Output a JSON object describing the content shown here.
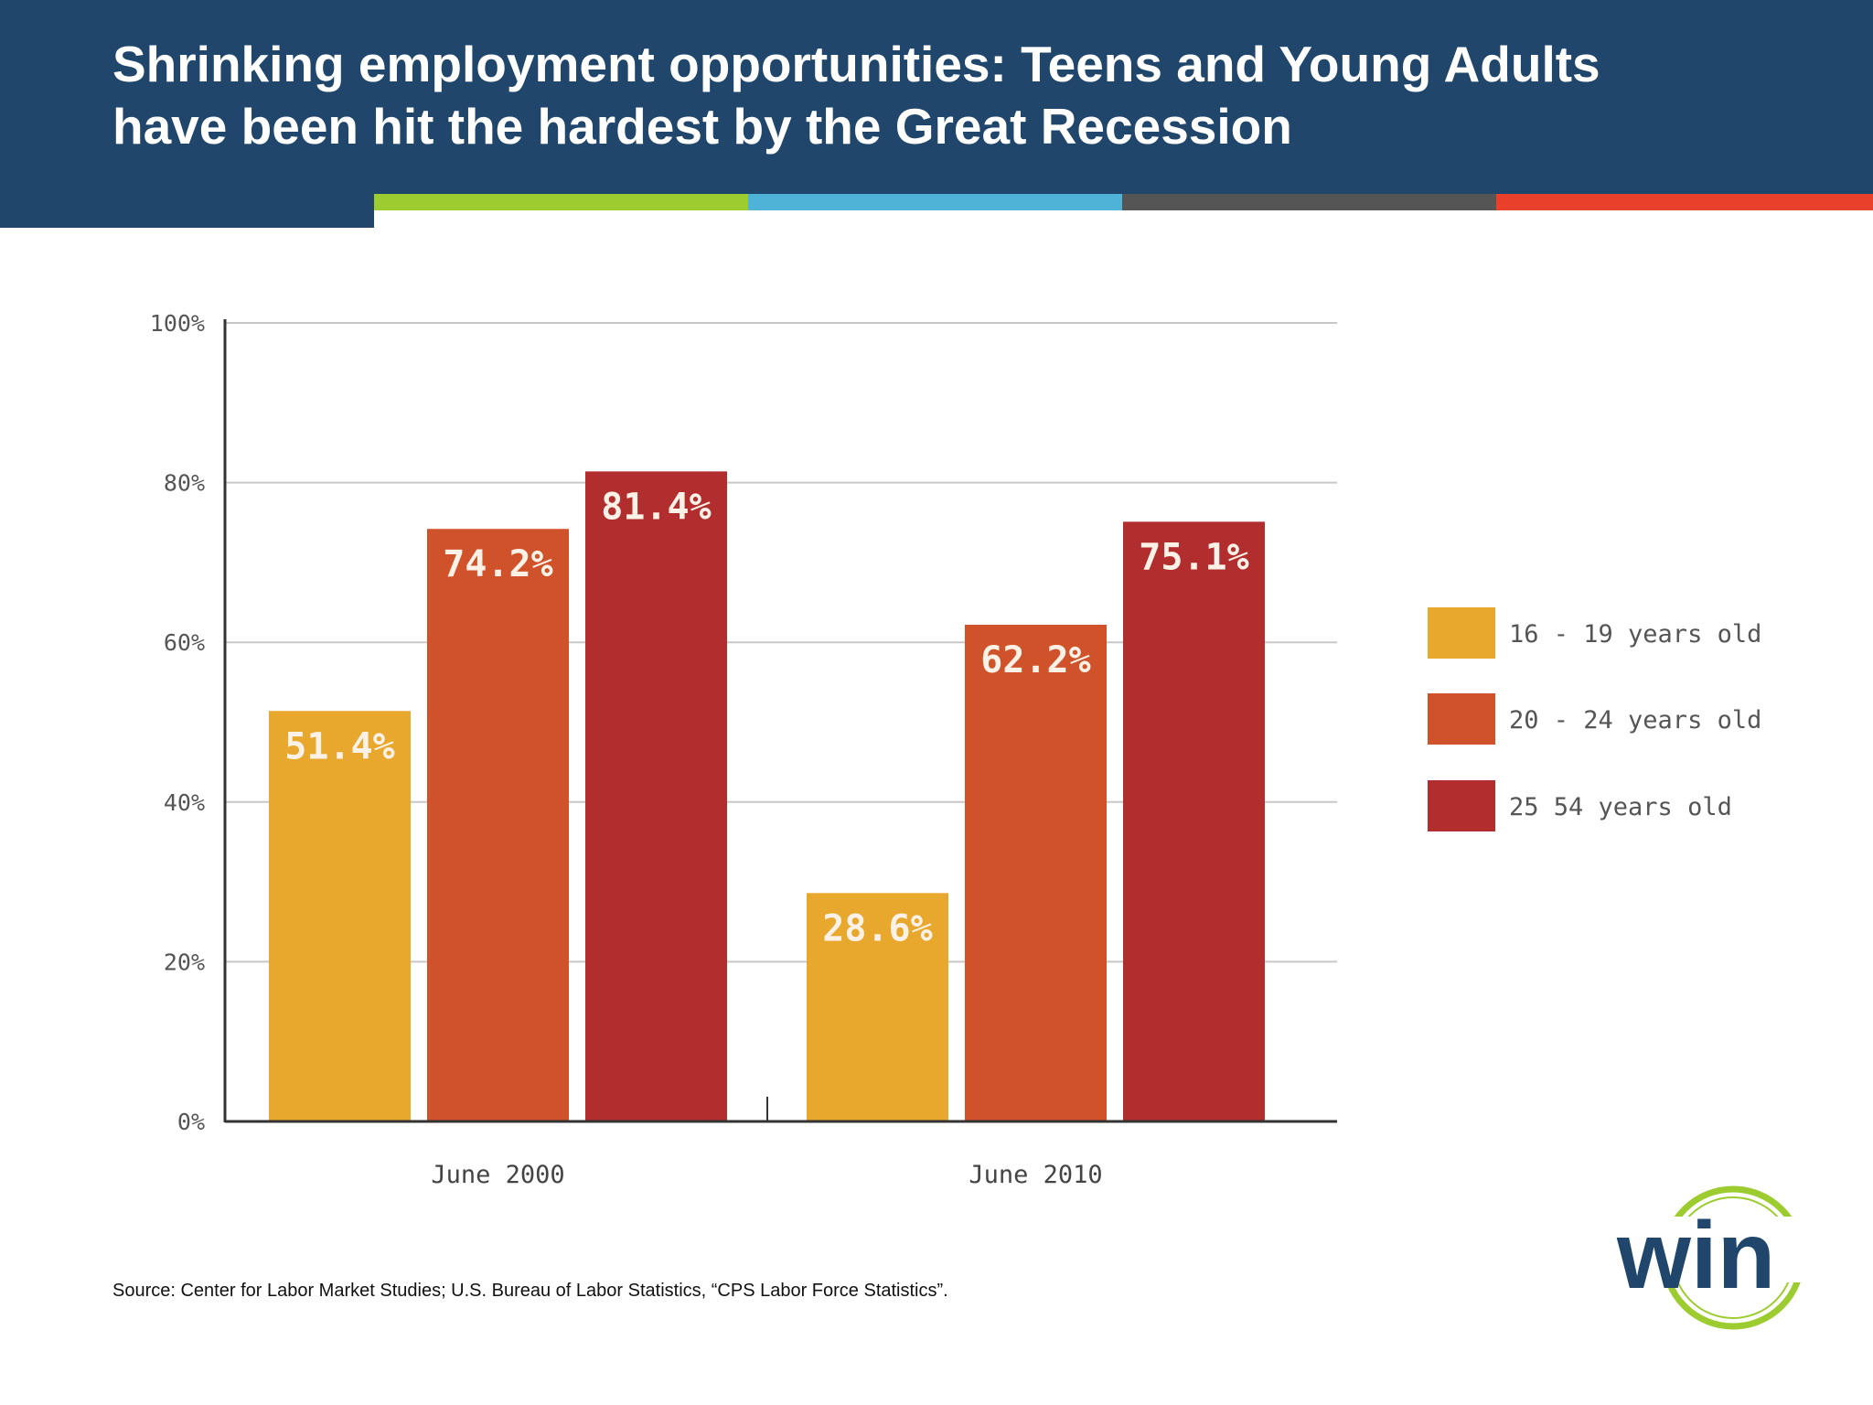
{
  "header": {
    "title_line1": "Shrinking employment opportunities: Teens and Young Adults",
    "title_line2": "have been hit the hardest by the Great Recession",
    "colors": {
      "background": "#21466b",
      "stripes": [
        "#9ccc2f",
        "#4fb3d8",
        "#555555",
        "#e8402a"
      ]
    }
  },
  "chart_data": {
    "type": "bar",
    "title": "",
    "xlabel": "",
    "ylabel": "",
    "categories": [
      "June 2000",
      "June 2010"
    ],
    "series": [
      {
        "name": "16 - 19 years old",
        "values": [
          51.4,
          28.6
        ],
        "labels": [
          "51.4%",
          "28.6%"
        ],
        "color": "#e8a82e"
      },
      {
        "name": "20 - 24 years old",
        "values": [
          74.2,
          62.2
        ],
        "labels": [
          "74.2%",
          "62.2%"
        ],
        "color": "#d0522a"
      },
      {
        "name": "25 54 years old",
        "values": [
          81.4,
          75.1
        ],
        "labels": [
          "81.4%",
          "75.1%"
        ],
        "color": "#b22e2e"
      }
    ],
    "ylim": [
      0,
      100
    ],
    "yticks": [
      0,
      20,
      40,
      60,
      80,
      100
    ],
    "ytick_labels": [
      "0%",
      "20%",
      "40%",
      "60%",
      "80%",
      "100%"
    ],
    "grid": true,
    "legend_position": "right"
  },
  "source": "Source: Center for Labor Market Studies; U.S. Bureau of Labor Statistics, “CPS Labor Force Statistics”.",
  "logo": {
    "text": "win",
    "colors": {
      "text": "#21466b",
      "ring": "#9ccc2f"
    }
  }
}
